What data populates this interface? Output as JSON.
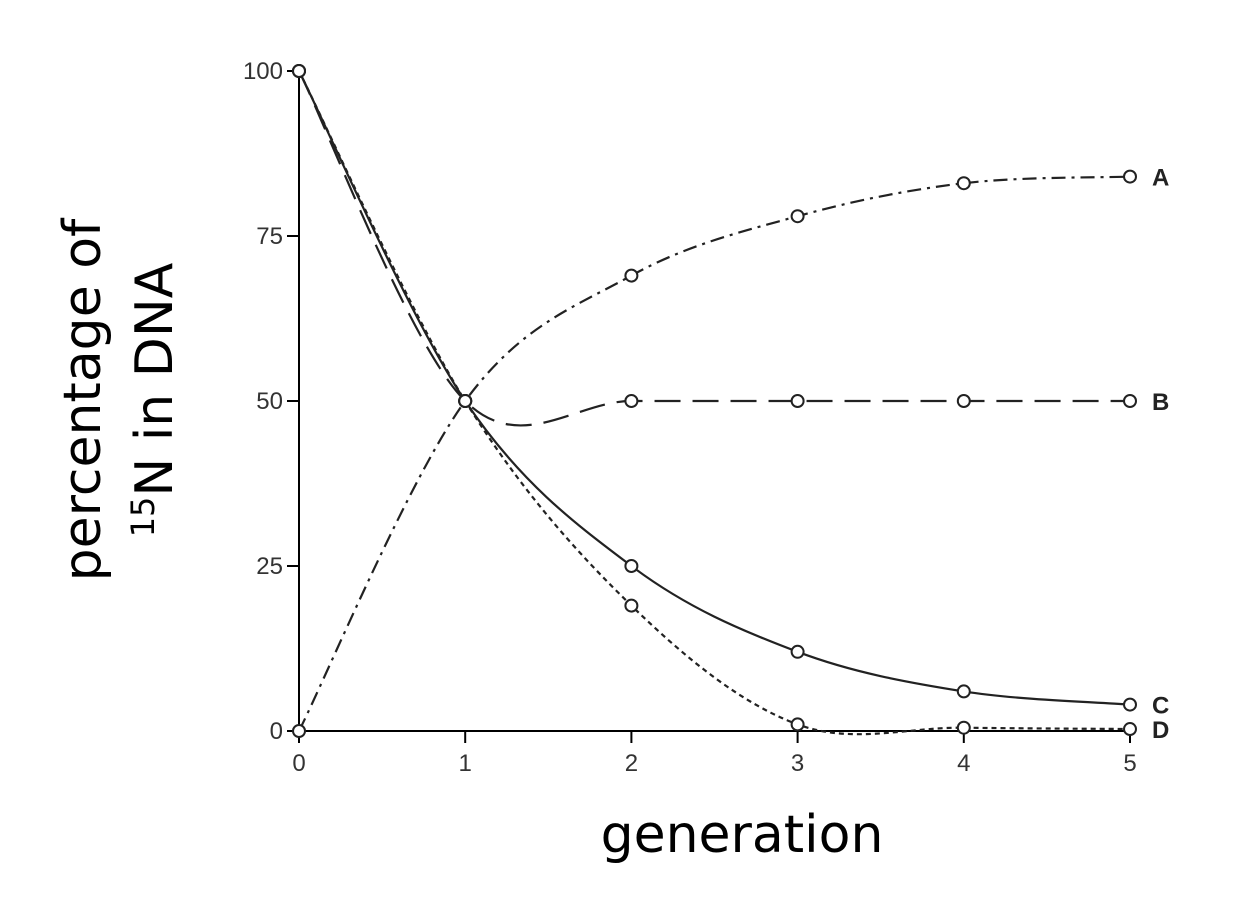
{
  "chart_data": {
    "type": "line",
    "xlabel": "generation",
    "ylabel": {
      "line1": "percentage of",
      "line2_sup": "15",
      "line2": "N in DNA"
    },
    "x": [
      0,
      1,
      2,
      3,
      4,
      5
    ],
    "xlim": [
      0,
      5
    ],
    "xticks": [
      0,
      1,
      2,
      3,
      4,
      5
    ],
    "ylim": [
      0,
      100
    ],
    "yticks": [
      0,
      25,
      50,
      75,
      100
    ],
    "grid": false,
    "marker": "circle",
    "series": [
      {
        "name": "A",
        "color": "#222222",
        "dash": "dashdot",
        "values": [
          0,
          50,
          69,
          78,
          83,
          84
        ]
      },
      {
        "name": "B",
        "color": "#222222",
        "dash": "dashed",
        "values": [
          100,
          50,
          50,
          50,
          50,
          50
        ]
      },
      {
        "name": "C",
        "color": "#222222",
        "dash": "solid",
        "values": [
          100,
          50,
          25,
          12,
          6,
          4
        ]
      },
      {
        "name": "D",
        "color": "#222222",
        "dash": "dotted",
        "values": [
          100,
          50,
          19,
          1,
          0.5,
          0.3
        ]
      }
    ]
  }
}
